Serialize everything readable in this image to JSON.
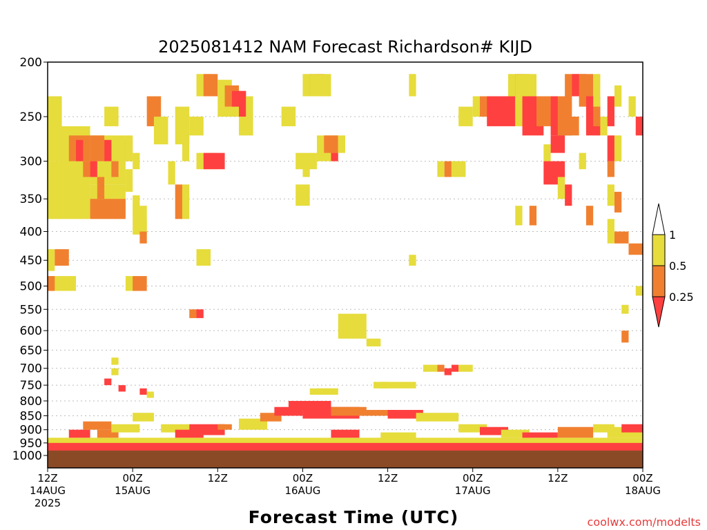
{
  "title": "2025081412 NAM Forecast Richardson# KIJD",
  "xlabel": "Forecast Time (UTC)",
  "credit": "coolwx.com/modelts",
  "colors": {
    "lt_0_25": "#ff4040",
    "0_25_to_0_5": "#f08030",
    "0_5_to_1": "#e6dc3c",
    "ground": "#8b4a26",
    "grid": "#bbbbbb"
  },
  "y_ticks": [
    "200",
    "250",
    "300",
    "350",
    "400",
    "450",
    "500",
    "550",
    "600",
    "650",
    "700",
    "750",
    "800",
    "850",
    "900",
    "950",
    "1000"
  ],
  "x_ticks": [
    {
      "l1": "12Z",
      "l2": "14AUG",
      "l3": "2025"
    },
    {
      "l1": "00Z",
      "l2": "15AUG",
      "l3": ""
    },
    {
      "l1": "12Z",
      "l2": "",
      "l3": ""
    },
    {
      "l1": "00Z",
      "l2": "16AUG",
      "l3": ""
    },
    {
      "l1": "12Z",
      "l2": "",
      "l3": ""
    },
    {
      "l1": "00Z",
      "l2": "17AUG",
      "l3": ""
    },
    {
      "l1": "12Z",
      "l2": "",
      "l3": ""
    },
    {
      "l1": "00Z",
      "l2": "18AUG",
      "l3": ""
    }
  ],
  "colorbar": {
    "labels": [
      "1",
      "0.5",
      "0.25"
    ]
  },
  "chart_data": {
    "type": "heatmap",
    "title": "2025081412 NAM Forecast Richardson# KIJD",
    "xlabel": "Forecast Time (UTC)",
    "ylabel": "",
    "y_axis": "pressure (hPa), log scale, reversed",
    "ylim": [
      1000,
      200
    ],
    "xlim_hours": [
      0,
      84
    ],
    "legend": "right, colorbar",
    "categories": [
      {
        "range": "< 0.25",
        "color": "#ff4040"
      },
      {
        "range": "0.25 - 0.5",
        "color": "#f08030"
      },
      {
        "range": "0.5 - 1",
        "color": "#e6dc3c"
      }
    ],
    "cells": [
      [
        0,
        230,
        2,
        300,
        "y"
      ],
      [
        2,
        260,
        6,
        330,
        "y"
      ],
      [
        6,
        270,
        11,
        330,
        "y"
      ],
      [
        0,
        300,
        6,
        380,
        "y"
      ],
      [
        6,
        330,
        11,
        375,
        "y"
      ],
      [
        3,
        270,
        6,
        300,
        "o"
      ],
      [
        4,
        275,
        5,
        300,
        "r"
      ],
      [
        6,
        270,
        8,
        300,
        "o"
      ],
      [
        8,
        275,
        9,
        300,
        "r"
      ],
      [
        11,
        275,
        12,
        300,
        "o"
      ],
      [
        5,
        300,
        6,
        320,
        "o"
      ],
      [
        6,
        300,
        7,
        320,
        "r"
      ],
      [
        6,
        350,
        11,
        380,
        "o"
      ],
      [
        7,
        320,
        8,
        350,
        "o"
      ],
      [
        9,
        300,
        10,
        320,
        "o"
      ],
      [
        8,
        240,
        10,
        260,
        "y"
      ],
      [
        11,
        310,
        12,
        340,
        "y"
      ],
      [
        11,
        270,
        12,
        300,
        "y"
      ],
      [
        12,
        345,
        13,
        375,
        "y"
      ],
      [
        12,
        360,
        14,
        405,
        "y"
      ],
      [
        12,
        290,
        13,
        310,
        "y"
      ],
      [
        13,
        400,
        14,
        420,
        "o"
      ],
      [
        13,
        380,
        14,
        400,
        "y"
      ],
      [
        14,
        230,
        16,
        260,
        "o"
      ],
      [
        15,
        250,
        17,
        280,
        "y"
      ],
      [
        18,
        240,
        20,
        280,
        "y"
      ],
      [
        17,
        300,
        18,
        330,
        "y"
      ],
      [
        18,
        330,
        19,
        380,
        "o"
      ],
      [
        19,
        330,
        20,
        380,
        "y"
      ],
      [
        19,
        270,
        20,
        300,
        "y"
      ],
      [
        20,
        250,
        22,
        270,
        "y"
      ],
      [
        21,
        290,
        24,
        310,
        "y"
      ],
      [
        22,
        290,
        25,
        310,
        "r"
      ],
      [
        21,
        210,
        23,
        230,
        "y"
      ],
      [
        22,
        210,
        24,
        230,
        "o"
      ],
      [
        24,
        215,
        26,
        240,
        "y"
      ],
      [
        25,
        220,
        27,
        240,
        "o"
      ],
      [
        26,
        225,
        28,
        250,
        "r"
      ],
      [
        24,
        240,
        27,
        250,
        "y"
      ],
      [
        28,
        230,
        29,
        250,
        "y"
      ],
      [
        27,
        250,
        29,
        270,
        "y"
      ],
      [
        21,
        430,
        23,
        460,
        "y"
      ],
      [
        20,
        550,
        21,
        570,
        "o"
      ],
      [
        21,
        550,
        22,
        570,
        "r"
      ],
      [
        0,
        430,
        1,
        470,
        "y"
      ],
      [
        1,
        430,
        3,
        460,
        "o"
      ],
      [
        0,
        480,
        4,
        510,
        "y"
      ],
      [
        0,
        480,
        1,
        510,
        "o"
      ],
      [
        11,
        480,
        13,
        510,
        "y"
      ],
      [
        12,
        480,
        14,
        510,
        "o"
      ],
      [
        33,
        240,
        35,
        260,
        "y"
      ],
      [
        36,
        210,
        37,
        230,
        "y"
      ],
      [
        37,
        210,
        38,
        230,
        "o"
      ],
      [
        38,
        210,
        39,
        230,
        "r"
      ],
      [
        37,
        210,
        40,
        230,
        "y"
      ],
      [
        35,
        290,
        38,
        310,
        "y"
      ],
      [
        35,
        330,
        37,
        360,
        "y"
      ],
      [
        36,
        300,
        37,
        320,
        "y"
      ],
      [
        38,
        270,
        41,
        300,
        "y"
      ],
      [
        39,
        270,
        41,
        290,
        "o"
      ],
      [
        40,
        290,
        41,
        300,
        "r"
      ],
      [
        41,
        270,
        42,
        290,
        "y"
      ],
      [
        41,
        560,
        45,
        620,
        "y"
      ],
      [
        45,
        620,
        47,
        640,
        "y"
      ],
      [
        51,
        210,
        52,
        230,
        "y"
      ],
      [
        51,
        440,
        52,
        460,
        "y"
      ],
      [
        55,
        300,
        56,
        320,
        "y"
      ],
      [
        56,
        300,
        57,
        320,
        "o"
      ],
      [
        57,
        300,
        59,
        320,
        "y"
      ],
      [
        58,
        240,
        60,
        260,
        "y"
      ],
      [
        60,
        230,
        62,
        250,
        "y"
      ],
      [
        61,
        230,
        64,
        250,
        "o"
      ],
      [
        62,
        230,
        66,
        260,
        "r"
      ],
      [
        65,
        210,
        66,
        230,
        "y"
      ],
      [
        66,
        210,
        67,
        230,
        "r"
      ],
      [
        67,
        210,
        68,
        230,
        "o"
      ],
      [
        66,
        210,
        69,
        260,
        "y"
      ],
      [
        67,
        230,
        70,
        270,
        "r"
      ],
      [
        69,
        230,
        72,
        260,
        "o"
      ],
      [
        71,
        230,
        73,
        270,
        "r"
      ],
      [
        72,
        230,
        74,
        270,
        "o"
      ],
      [
        73,
        210,
        75,
        230,
        "o"
      ],
      [
        74,
        210,
        76,
        230,
        "r"
      ],
      [
        75,
        210,
        77,
        240,
        "o"
      ],
      [
        76,
        230,
        78,
        270,
        "r"
      ],
      [
        77,
        240,
        78,
        260,
        "o"
      ],
      [
        73,
        250,
        75,
        270,
        "o"
      ],
      [
        71,
        270,
        73,
        290,
        "r"
      ],
      [
        70,
        280,
        71,
        300,
        "y"
      ],
      [
        70,
        300,
        73,
        330,
        "r"
      ],
      [
        72,
        320,
        73,
        340,
        "y"
      ],
      [
        73,
        330,
        74,
        360,
        "r"
      ],
      [
        72,
        330,
        73,
        350,
        "y"
      ],
      [
        75,
        290,
        76,
        310,
        "y"
      ],
      [
        76,
        360,
        77,
        390,
        "o"
      ],
      [
        68,
        360,
        69,
        390,
        "o"
      ],
      [
        66,
        360,
        67,
        390,
        "y"
      ],
      [
        77,
        210,
        78,
        240,
        "y"
      ],
      [
        78,
        250,
        79,
        270,
        "y"
      ],
      [
        79,
        230,
        80,
        260,
        "r"
      ],
      [
        79,
        270,
        80,
        300,
        "r"
      ],
      [
        79,
        300,
        80,
        320,
        "o"
      ],
      [
        80,
        270,
        81,
        300,
        "y"
      ],
      [
        80,
        220,
        81,
        240,
        "y"
      ],
      [
        79,
        330,
        80,
        360,
        "y"
      ],
      [
        80,
        340,
        81,
        370,
        "o"
      ],
      [
        79,
        380,
        80,
        420,
        "y"
      ],
      [
        80,
        400,
        82,
        420,
        "o"
      ],
      [
        82,
        420,
        84,
        440,
        "o"
      ],
      [
        82,
        230,
        83,
        250,
        "y"
      ],
      [
        83,
        250,
        84,
        270,
        "r"
      ],
      [
        83,
        500,
        84,
        520,
        "y"
      ],
      [
        81,
        540,
        82,
        560,
        "y"
      ],
      [
        81,
        600,
        82,
        630,
        "o"
      ],
      [
        53,
        690,
        55,
        710,
        "y"
      ],
      [
        55,
        690,
        56,
        710,
        "o"
      ],
      [
        56,
        700,
        57,
        720,
        "r"
      ],
      [
        57,
        690,
        58,
        710,
        "r"
      ],
      [
        58,
        690,
        60,
        710,
        "y"
      ],
      [
        47,
        740,
        52,
        760,
        "y"
      ],
      [
        46,
        740,
        48,
        760,
        "y"
      ],
      [
        37,
        760,
        41,
        780,
        "y"
      ],
      [
        38,
        760,
        41,
        770,
        "y"
      ],
      [
        9,
        670,
        10,
        690,
        "y"
      ],
      [
        9,
        700,
        10,
        720,
        "y"
      ],
      [
        8,
        730,
        9,
        750,
        "r"
      ],
      [
        10,
        750,
        11,
        770,
        "r"
      ],
      [
        13,
        760,
        14,
        780,
        "r"
      ],
      [
        14,
        770,
        15,
        790,
        "y"
      ]
    ],
    "bl_cells": [
      [
        0,
        930,
        84,
        1000,
        "y"
      ],
      [
        0,
        950,
        84,
        1000,
        "r"
      ],
      [
        3,
        900,
        6,
        930,
        "r"
      ],
      [
        5,
        870,
        9,
        900,
        "o"
      ],
      [
        7,
        900,
        10,
        930,
        "o"
      ],
      [
        9,
        880,
        13,
        910,
        "y"
      ],
      [
        12,
        840,
        15,
        870,
        "y"
      ],
      [
        16,
        880,
        20,
        910,
        "y"
      ],
      [
        20,
        880,
        25,
        920,
        "r"
      ],
      [
        24,
        880,
        26,
        900,
        "o"
      ],
      [
        27,
        860,
        31,
        900,
        "y"
      ],
      [
        30,
        840,
        33,
        870,
        "o"
      ],
      [
        32,
        820,
        36,
        850,
        "r"
      ],
      [
        34,
        800,
        40,
        830,
        "r"
      ],
      [
        36,
        820,
        44,
        860,
        "r"
      ],
      [
        40,
        820,
        45,
        850,
        "o"
      ],
      [
        44,
        830,
        49,
        850,
        "o"
      ],
      [
        48,
        830,
        53,
        860,
        "r"
      ],
      [
        52,
        840,
        58,
        870,
        "y"
      ],
      [
        58,
        880,
        62,
        910,
        "y"
      ],
      [
        61,
        890,
        65,
        920,
        "r"
      ],
      [
        64,
        900,
        68,
        930,
        "y"
      ],
      [
        67,
        910,
        72,
        930,
        "r"
      ],
      [
        72,
        890,
        77,
        930,
        "o"
      ],
      [
        77,
        880,
        80,
        910,
        "y"
      ],
      [
        79,
        890,
        84,
        930,
        "y"
      ],
      [
        81,
        880,
        84,
        910,
        "r"
      ],
      [
        18,
        900,
        22,
        930,
        "r"
      ],
      [
        40,
        900,
        44,
        930,
        "r"
      ],
      [
        47,
        910,
        52,
        940,
        "y"
      ]
    ],
    "ground_top": 980
  }
}
